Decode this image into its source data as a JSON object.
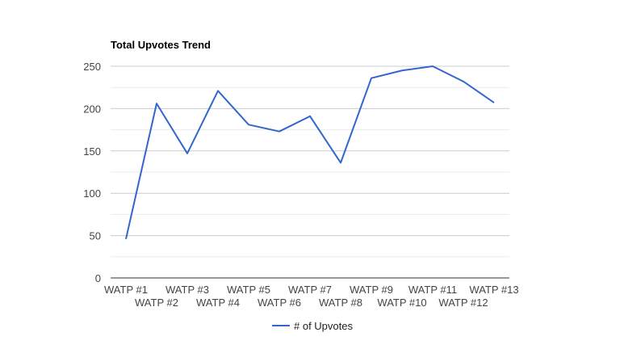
{
  "chart_data": {
    "type": "line",
    "title": "Total Upvotes Trend",
    "xlabel": "",
    "ylabel": "",
    "categories": [
      "WATP #1",
      "WATP #2",
      "WATP #3",
      "WATP #4",
      "WATP #5",
      "WATP #6",
      "WATP #7",
      "WATP #8",
      "WATP #9",
      "WATP #10",
      "WATP #11",
      "WATP #12",
      "WATP #13"
    ],
    "series": [
      {
        "name": "# of Upvotes",
        "color": "#3366cc",
        "values": [
          46,
          206,
          147,
          221,
          181,
          173,
          191,
          136,
          236,
          245,
          250,
          232,
          207
        ]
      }
    ],
    "ylim": [
      0,
      250
    ],
    "yticks": [
      0,
      50,
      100,
      150,
      200,
      250
    ],
    "grid": true,
    "legend": "bottom"
  }
}
